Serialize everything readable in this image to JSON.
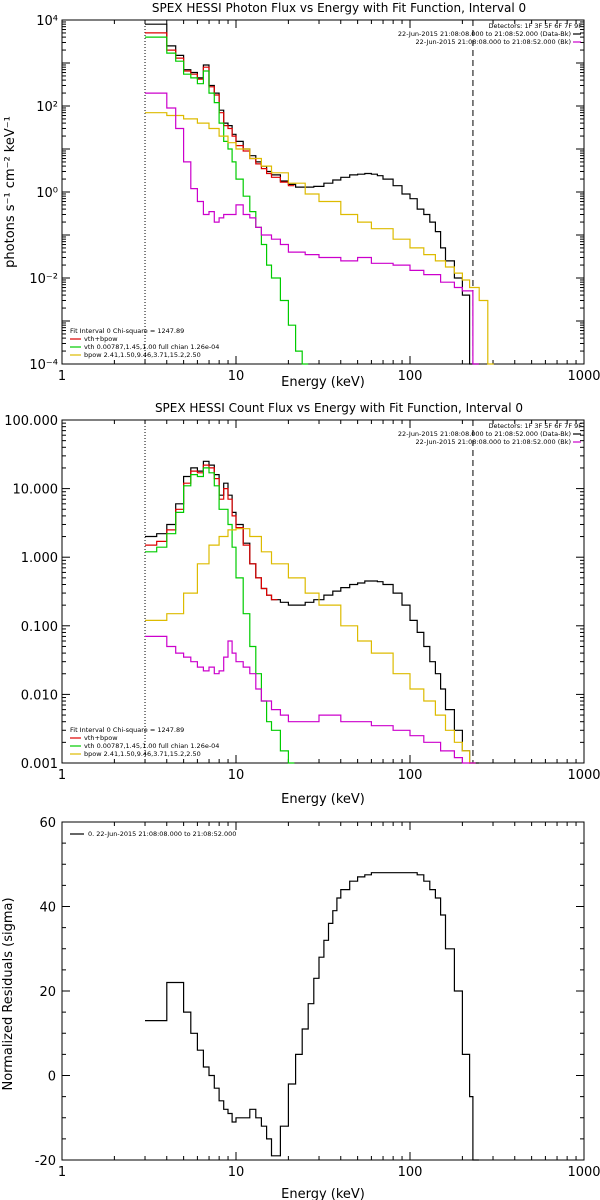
{
  "colors": {
    "total": "#dd0000",
    "vth": "#00cc00",
    "bpow": "#ddbb00",
    "bk": "#cc00cc",
    "data": "#000000"
  },
  "chart_data": [
    {
      "type": "line",
      "title": "SPEX HESSI Photon Flux vs Energy with Fit Function, Interval 0",
      "xlabel": "Energy (keV)",
      "ylabel": "photons s⁻¹ cm⁻² keV⁻¹",
      "xscale": "log",
      "yscale": "log",
      "xlim": [
        1,
        1000
      ],
      "ylim": [
        0.0001,
        10000
      ],
      "xticks": [
        "1",
        "10",
        "100",
        "1000"
      ],
      "yticks": [
        "10⁻⁴",
        "10⁻²",
        "10⁰",
        "10²",
        "10⁴"
      ],
      "detectors_label": "Detectors: 1F 3F 5F 6F 7F 9F",
      "legend_top": [
        {
          "text": "22-Jun-2015 21:08:08.000 to 21:08:52.000 (Data-Bk)",
          "color": "#000000"
        },
        {
          "text": "22-Jun-2015 21:08:08.000 to 21:08:52.000 (Bk)",
          "color": "#cc00cc"
        }
      ],
      "legend_bottom": [
        {
          "text": "Fit Interval 0   Chi-square = 1247.89",
          "color": "#000000"
        },
        {
          "text": "vth+bpow",
          "color": "#dd0000"
        },
        {
          "text": "vth 0.00787,1.45,1.00  full chian 1.26e-04",
          "color": "#00cc00"
        },
        {
          "text": "bpow 2.41,1.50,9.46,3.71,15.2,2.50",
          "color": "#ddbb00"
        }
      ],
      "vlines": [
        {
          "x": 3,
          "style": "dotted"
        },
        {
          "x": 230,
          "style": "dashed"
        }
      ],
      "series": [
        {
          "name": "Data-Bk",
          "x": [
            3,
            3.5,
            4,
            4.5,
            5,
            5.5,
            6,
            6.5,
            7,
            7.5,
            8,
            8.5,
            9,
            9.5,
            10,
            11,
            12,
            13,
            14,
            15,
            16,
            18,
            20,
            22,
            25,
            28,
            32,
            36,
            40,
            45,
            50,
            55,
            60,
            65,
            70,
            80,
            90,
            100,
            110,
            120,
            130,
            140,
            150,
            160,
            180,
            200,
            220,
            250
          ],
          "y": [
            8000,
            8000,
            2500,
            1500,
            700,
            600,
            450,
            900,
            300,
            200,
            80,
            40,
            35,
            22,
            15,
            10,
            7,
            5,
            4,
            3,
            2.5,
            1.8,
            1.5,
            1.3,
            1.3,
            1.35,
            1.6,
            1.9,
            2.2,
            2.5,
            2.6,
            2.7,
            2.6,
            2.4,
            2.0,
            1.4,
            0.9,
            0.7,
            0.4,
            0.3,
            0.2,
            0.12,
            0.05,
            0.025,
            0.01,
            0.004,
            0.0001,
            null
          ]
        },
        {
          "name": "vth+bpow",
          "x": [
            3,
            3.5,
            4,
            4.5,
            5,
            5.5,
            6,
            6.5,
            7,
            7.5,
            8,
            8.5,
            9,
            9.5,
            10,
            11,
            12,
            13,
            14,
            15,
            16,
            18,
            20
          ],
          "y": [
            5000,
            5000,
            2000,
            1300,
            650,
            550,
            420,
            800,
            280,
            180,
            70,
            35,
            30,
            20,
            12,
            9,
            6,
            4.5,
            3.5,
            2.7,
            2.2,
            1.7,
            1.4
          ]
        },
        {
          "name": "vth",
          "x": [
            3,
            3.5,
            4,
            4.5,
            5,
            5.5,
            6,
            6.5,
            7,
            7.5,
            8,
            8.5,
            9,
            9.5,
            10,
            11,
            12,
            13,
            14,
            15,
            16,
            18,
            20,
            22,
            24
          ],
          "y": [
            4000,
            4000,
            1700,
            1100,
            550,
            450,
            330,
            650,
            200,
            120,
            40,
            15,
            10,
            5,
            2,
            0.8,
            0.35,
            0.15,
            0.06,
            0.02,
            0.01,
            0.003,
            0.0008,
            0.0002,
            0.0001
          ]
        },
        {
          "name": "bpow",
          "x": [
            3,
            4,
            5,
            6,
            7,
            8,
            9,
            10,
            12,
            14,
            16,
            20,
            25,
            30,
            40,
            50,
            60,
            80,
            100,
            120,
            140,
            160,
            180,
            200,
            220,
            250,
            280
          ],
          "y": [
            70,
            60,
            50,
            40,
            30,
            20,
            14,
            10,
            6,
            4,
            2.8,
            1.6,
            0.9,
            0.6,
            0.3,
            0.2,
            0.14,
            0.08,
            0.05,
            0.035,
            0.025,
            0.018,
            0.013,
            0.009,
            0.006,
            0.003,
            0.0001
          ]
        },
        {
          "name": "Bk",
          "x": [
            3,
            4,
            4.5,
            5,
            5.5,
            6,
            6.5,
            7,
            7.5,
            8,
            8.5,
            9,
            9.5,
            10,
            11,
            12,
            13,
            14,
            16,
            18,
            20,
            25,
            30,
            40,
            50,
            60,
            80,
            100,
            120,
            150,
            180,
            200,
            230
          ],
          "y": [
            200,
            90,
            30,
            5,
            1.2,
            0.6,
            0.3,
            0.35,
            0.2,
            0.25,
            0.3,
            0.3,
            0.3,
            0.5,
            0.3,
            0.25,
            0.15,
            0.1,
            0.08,
            0.06,
            0.04,
            0.035,
            0.03,
            0.025,
            0.03,
            0.022,
            0.02,
            0.015,
            0.012,
            0.008,
            0.006,
            0.005,
            0.0001
          ]
        }
      ]
    },
    {
      "type": "line",
      "title": "SPEX HESSI Count Flux vs Energy with Fit Function, Interval 0",
      "xlabel": "Energy (keV)",
      "ylabel": "",
      "xscale": "log",
      "yscale": "log",
      "xlim": [
        1,
        1000
      ],
      "ylim": [
        0.001,
        100
      ],
      "xticks": [
        "1",
        "10",
        "100",
        "1000"
      ],
      "yticks": [
        "0.001",
        "0.010",
        "0.100",
        "1.000",
        "10.000",
        "100.000"
      ],
      "detectors_label": "Detectors: 1F 3F 5F 6F 7F 9F",
      "legend_top": [
        {
          "text": "22-Jun-2015 21:08:08.000 to 21:08:52.000 (Data-Bk)",
          "color": "#000000"
        },
        {
          "text": "22-Jun-2015 21:08:08.000 to 21:08:52.000 (Bk)",
          "color": "#cc00cc"
        }
      ],
      "legend_bottom": [
        {
          "text": "Fit Interval 0   Chi-square = 1247.89",
          "color": "#000000"
        },
        {
          "text": "vth+bpow",
          "color": "#dd0000"
        },
        {
          "text": "vth 0.00787,1.45,1.00  full chian 1.26e-04",
          "color": "#00cc00"
        },
        {
          "text": "bpow 2.41,1.50,9.46,3.71,15.2,2.50",
          "color": "#ddbb00"
        }
      ],
      "vlines": [
        {
          "x": 3,
          "style": "dotted"
        },
        {
          "x": 230,
          "style": "dashed"
        }
      ],
      "series": [
        {
          "name": "Data-Bk",
          "x": [
            3,
            3.5,
            4,
            4.5,
            5,
            5.5,
            6,
            6.5,
            7,
            7.5,
            8,
            8.5,
            9,
            9.5,
            10,
            11,
            12,
            13,
            14,
            15,
            16,
            18,
            20,
            22,
            25,
            28,
            32,
            36,
            40,
            45,
            50,
            55,
            60,
            65,
            70,
            80,
            90,
            100,
            110,
            120,
            130,
            140,
            150,
            160,
            180,
            200,
            220,
            230
          ],
          "y": [
            2,
            2.2,
            3,
            6,
            15,
            20,
            18,
            25,
            22,
            16,
            8,
            12,
            8,
            4.5,
            3,
            1.6,
            0.8,
            0.5,
            0.35,
            0.28,
            0.24,
            0.22,
            0.2,
            0.2,
            0.22,
            0.24,
            0.28,
            0.32,
            0.36,
            0.4,
            0.42,
            0.45,
            0.45,
            0.44,
            0.4,
            0.3,
            0.2,
            0.12,
            0.08,
            0.05,
            0.03,
            0.02,
            0.012,
            0.006,
            0.003,
            0.0015,
            0.001,
            0.001
          ]
        },
        {
          "name": "vth+bpow",
          "x": [
            3,
            3.5,
            4,
            4.5,
            5,
            5.5,
            6,
            6.5,
            7,
            7.5,
            8,
            8.5,
            9,
            9.5,
            10,
            11,
            12,
            13,
            14,
            15,
            16
          ],
          "y": [
            1.5,
            1.7,
            2.5,
            5,
            12,
            18,
            17,
            22,
            20,
            14,
            7,
            10,
            7,
            4,
            2.7,
            1.5,
            0.8,
            0.5,
            0.35,
            0.28,
            0.24
          ]
        },
        {
          "name": "vth",
          "x": [
            3,
            3.5,
            4,
            4.5,
            5,
            5.5,
            6,
            6.5,
            7,
            7.5,
            8,
            8.5,
            9,
            9.5,
            10,
            11,
            12,
            13,
            14,
            15,
            16,
            18,
            20
          ],
          "y": [
            1.2,
            1.4,
            2.2,
            4.5,
            11,
            16,
            15,
            20,
            17,
            11,
            5,
            5,
            3,
            1.4,
            0.5,
            0.15,
            0.05,
            0.02,
            0.008,
            0.004,
            0.003,
            0.0015,
            0.001
          ]
        },
        {
          "name": "bpow",
          "x": [
            3,
            4,
            5,
            6,
            7,
            8,
            9,
            10,
            12,
            14,
            16,
            20,
            25,
            30,
            40,
            50,
            60,
            80,
            100,
            120,
            140,
            160,
            180,
            200,
            220
          ],
          "y": [
            0.12,
            0.15,
            0.3,
            0.8,
            1.5,
            2.0,
            2.5,
            2.6,
            2.0,
            1.2,
            0.8,
            0.5,
            0.3,
            0.2,
            0.1,
            0.06,
            0.04,
            0.02,
            0.012,
            0.008,
            0.005,
            0.003,
            0.002,
            0.0015,
            0.001
          ]
        },
        {
          "name": "Bk",
          "x": [
            3,
            4,
            4.5,
            5,
            5.5,
            6,
            6.5,
            7,
            7.5,
            8,
            8.5,
            9,
            9.5,
            10,
            11,
            12,
            13,
            14,
            16,
            18,
            20,
            25,
            30,
            40,
            50,
            60,
            80,
            100,
            120,
            150,
            180,
            200,
            220
          ],
          "y": [
            0.07,
            0.05,
            0.04,
            0.035,
            0.03,
            0.025,
            0.022,
            0.025,
            0.02,
            0.022,
            0.035,
            0.06,
            0.04,
            0.03,
            0.025,
            0.02,
            0.012,
            0.008,
            0.006,
            0.005,
            0.004,
            0.004,
            0.005,
            0.004,
            0.004,
            0.0035,
            0.003,
            0.0025,
            0.002,
            0.0015,
            0.0012,
            0.001,
            0.001
          ]
        }
      ]
    },
    {
      "type": "line",
      "title": "",
      "xlabel": "Energy (keV)",
      "ylabel": "Normalized Residuals (sigma)",
      "xscale": "log",
      "yscale": "linear",
      "xlim": [
        1,
        1000
      ],
      "ylim": [
        -20,
        60
      ],
      "xticks": [
        "1",
        "10",
        "100",
        "1000"
      ],
      "yticks": [
        "-20",
        "0",
        "20",
        "40",
        "60"
      ],
      "legend_top": [
        {
          "text": "0. 22-Jun-2015 21:08:08.000 to 21:08:52.000",
          "color": "#000000"
        }
      ],
      "series": [
        {
          "name": "0. 22-Jun-2015 21:08:08.000 to 21:08:52.000",
          "x": [
            3,
            4,
            5,
            5.5,
            6,
            6.5,
            7,
            7.5,
            8,
            8.5,
            9,
            9.5,
            10,
            11,
            12,
            13,
            14,
            15,
            16,
            18,
            20,
            22,
            24,
            26,
            28,
            30,
            32,
            34,
            36,
            38,
            40,
            45,
            50,
            55,
            60,
            65,
            70,
            80,
            90,
            100,
            110,
            120,
            130,
            140,
            150,
            160,
            180,
            200,
            220,
            230
          ],
          "y": [
            13,
            22,
            15,
            10,
            6,
            2,
            0,
            -3,
            -6,
            -8,
            -9,
            -11,
            -10,
            -10,
            -8,
            -10,
            -12,
            -15,
            -19,
            -12,
            -2,
            5,
            11,
            17,
            23,
            28,
            32,
            36,
            39,
            42,
            44,
            46,
            47,
            47.5,
            48,
            48,
            48,
            48,
            48,
            48,
            47.5,
            46,
            44,
            42,
            38,
            30,
            20,
            5,
            -5,
            -20
          ]
        }
      ]
    }
  ]
}
